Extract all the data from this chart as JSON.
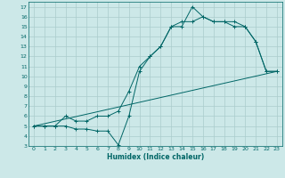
{
  "bg_color": "#cce8e8",
  "grid_color": "#aacccc",
  "line_color": "#006666",
  "xlabel": "Humidex (Indice chaleur)",
  "xlim": [
    -0.5,
    23.5
  ],
  "ylim": [
    3,
    17.5
  ],
  "xticks": [
    0,
    1,
    2,
    3,
    4,
    5,
    6,
    7,
    8,
    9,
    10,
    11,
    12,
    13,
    14,
    15,
    16,
    17,
    18,
    19,
    20,
    21,
    22,
    23
  ],
  "yticks": [
    3,
    4,
    5,
    6,
    7,
    8,
    9,
    10,
    11,
    12,
    13,
    14,
    15,
    16,
    17
  ],
  "line1_x": [
    0,
    1,
    2,
    3,
    4,
    5,
    6,
    7,
    8,
    9,
    10,
    11,
    12,
    13,
    14,
    15,
    16,
    17,
    18,
    19,
    20,
    21,
    22,
    23
  ],
  "line1_y": [
    5,
    5,
    5,
    5,
    4.7,
    4.7,
    4.5,
    4.5,
    3.1,
    6,
    10.5,
    12,
    13,
    15,
    15,
    17,
    16,
    15.5,
    15.5,
    15,
    15,
    13.5,
    10.5,
    10.5
  ],
  "line2_x": [
    0,
    1,
    2,
    3,
    4,
    5,
    6,
    7,
    8,
    9,
    10,
    11,
    12,
    13,
    14,
    15,
    16,
    17,
    18,
    19,
    20,
    21,
    22,
    23
  ],
  "line2_y": [
    5,
    5,
    5,
    6,
    5.5,
    5.5,
    6.0,
    6.0,
    6.5,
    8.5,
    11,
    12,
    13,
    15,
    15.5,
    15.5,
    16,
    15.5,
    15.5,
    15.5,
    15,
    13.5,
    10.5,
    10.5
  ],
  "line3_x": [
    0,
    23
  ],
  "line3_y": [
    5,
    10.5
  ],
  "marker": "+"
}
